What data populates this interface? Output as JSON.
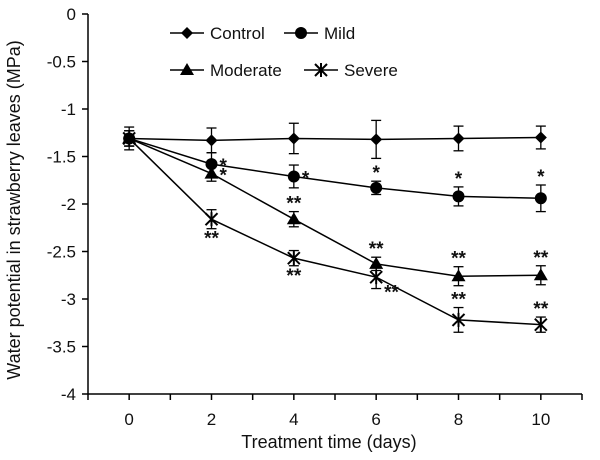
{
  "chart_data": {
    "type": "line",
    "title": "",
    "xlabel": "Treatment time (days)",
    "ylabel": "Water potential in strawberry leaves (MPa)",
    "x": [
      0,
      2,
      4,
      6,
      8,
      10
    ],
    "x_ticks": [
      "0",
      "2",
      "4",
      "6",
      "8",
      "10"
    ],
    "xlim": [
      -1,
      11
    ],
    "ylim": [
      -4,
      0
    ],
    "y_ticks": [
      "0",
      "-0.5",
      "-1",
      "-1.5",
      "-2",
      "-2.5",
      "-3",
      "-3.5",
      "-4"
    ],
    "grid": false,
    "legend_position": "top-center",
    "series": [
      {
        "name": "Control",
        "marker": "diamond",
        "values": [
          -1.31,
          -1.33,
          -1.31,
          -1.32,
          -1.31,
          -1.3
        ],
        "errors": [
          0.12,
          0.13,
          0.16,
          0.2,
          0.13,
          0.12
        ],
        "annotations": [
          "",
          "",
          "",
          "",
          "",
          ""
        ],
        "annotation_side": [
          "",
          "",
          "",
          "",
          "",
          ""
        ]
      },
      {
        "name": "Mild",
        "marker": "circle",
        "values": [
          -1.31,
          -1.58,
          -1.71,
          -1.83,
          -1.92,
          -1.94
        ],
        "errors": [
          0.08,
          0.12,
          0.12,
          0.07,
          0.1,
          0.14
        ],
        "annotations": [
          "",
          "*",
          "*",
          "*",
          "*",
          "*"
        ],
        "annotation_side": [
          "",
          "right",
          "right",
          "above",
          "above",
          "above"
        ]
      },
      {
        "name": "Moderate",
        "marker": "triangle",
        "values": [
          -1.31,
          -1.68,
          -2.16,
          -2.63,
          -2.76,
          -2.75
        ],
        "errors": [
          0.08,
          0.08,
          0.08,
          0.07,
          0.1,
          0.1
        ],
        "annotations": [
          "",
          "*",
          "**",
          "**",
          "**",
          "**"
        ],
        "annotation_side": [
          "",
          "right",
          "above",
          "above",
          "above",
          "above"
        ]
      },
      {
        "name": "Severe",
        "marker": "asterisk",
        "values": [
          -1.31,
          -2.16,
          -2.57,
          -2.77,
          -3.22,
          -3.27
        ],
        "errors": [
          0.08,
          0.1,
          0.08,
          0.12,
          0.13,
          0.08
        ],
        "annotations": [
          "",
          "**",
          "**",
          "**",
          "**",
          "**"
        ],
        "annotation_side": [
          "",
          "below",
          "below",
          "below-right",
          "above",
          "above"
        ]
      }
    ]
  }
}
